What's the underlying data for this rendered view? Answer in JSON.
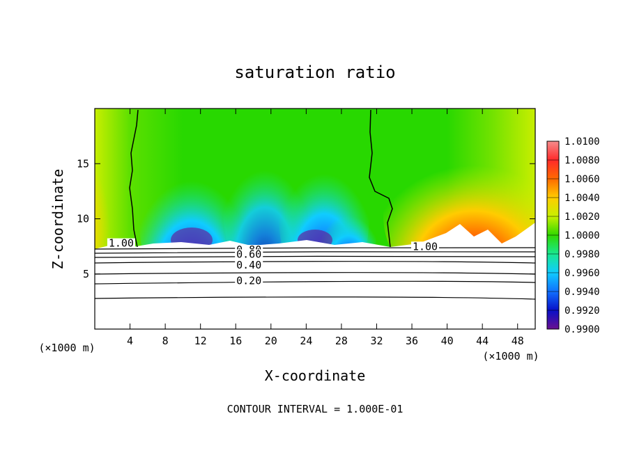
{
  "chart_data": {
    "type": "heatmap",
    "title": "saturation ratio",
    "xlabel": "X-coordinate",
    "ylabel": "Z-coordinate",
    "x_unit": "(×1000 m)",
    "y_unit": "(×1000 m)",
    "xlim": [
      0,
      50
    ],
    "ylim": [
      0,
      20
    ],
    "x_ticks": [
      4,
      8,
      12,
      16,
      20,
      24,
      28,
      32,
      36,
      40,
      44,
      48
    ],
    "y_ticks": [
      5,
      10,
      15
    ],
    "footer": "CONTOUR INTERVAL = 1.000E-01",
    "colorbar": {
      "min": 0.99,
      "max": 1.01,
      "labels": [
        "1.0100",
        "1.0080",
        "1.0060",
        "1.0040",
        "1.0020",
        "1.0000",
        "0.9980",
        "0.9960",
        "0.9940",
        "0.9920",
        "0.9900"
      ],
      "colors": [
        "#f58c8c",
        "#ff2a2a",
        "#ff6a00",
        "#ffcc00",
        "#c8f000",
        "#30d800",
        "#18e890",
        "#10ccff",
        "#1070ff",
        "#0810c8",
        "#6a1090"
      ]
    },
    "contour_labels": [
      {
        "text": "1.00",
        "x": 3,
        "z": 7.6
      },
      {
        "text": "1.00",
        "x": 37.5,
        "z": 7.3
      },
      {
        "text": "0.80",
        "x": 17.5,
        "z": 7.0
      },
      {
        "text": "0.60",
        "x": 17.5,
        "z": 6.6
      },
      {
        "text": "0.40",
        "x": 17.5,
        "z": 5.6
      },
      {
        "text": "0.20",
        "x": 17.5,
        "z": 4.2
      }
    ]
  }
}
